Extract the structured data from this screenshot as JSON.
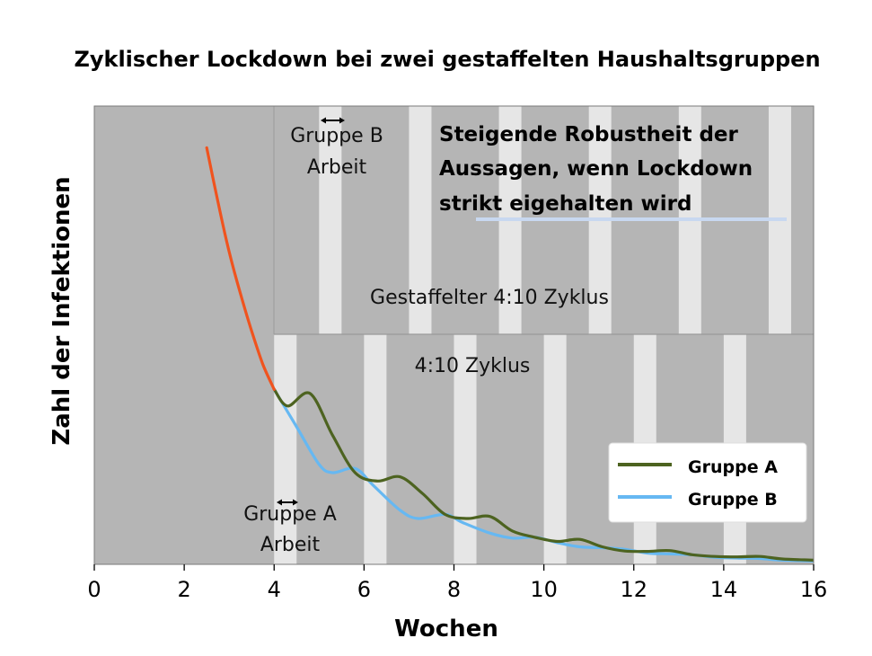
{
  "chart_data": {
    "type": "line",
    "title": "Zyklischer Lockdown bei zwei gestaffelten Haushaltsgruppen",
    "xlabel": "Wochen",
    "ylabel": "Zahl der Infektionen",
    "xlim": [
      0,
      16
    ],
    "xticks": [
      "0",
      "2",
      "4",
      "6",
      "8",
      "10",
      "12",
      "14",
      "16"
    ],
    "grid": false,
    "legend_position": "lower-right",
    "colors": {
      "background": "#b5b5b5",
      "work_band": "#e6e6e6",
      "initial_curve": "#f0531e",
      "gruppe_a": "#4d6320",
      "gruppe_b": "#66b8f2"
    },
    "work_periods_upper": [
      [
        5,
        5.5
      ],
      [
        7,
        7.5
      ],
      [
        9,
        9.5
      ],
      [
        11,
        11.5
      ],
      [
        13,
        13.5
      ],
      [
        15,
        15.5
      ]
    ],
    "work_periods_lower": [
      [
        4,
        4.5
      ],
      [
        6,
        6.5
      ],
      [
        8,
        8.5
      ],
      [
        10,
        10.5
      ],
      [
        12,
        12.5
      ],
      [
        14,
        14.5
      ]
    ],
    "annotations": {
      "upper_cycle": "Gestaffelter 4:10 Zyklus",
      "lower_cycle": "4:10 Zyklus",
      "gruppe_b_line1": "Gruppe B",
      "gruppe_b_line2": "Arbeit",
      "gruppe_a_line1": "Gruppe A",
      "gruppe_a_line2": "Arbeit",
      "note_line1": "Steigende Robustheit der",
      "note_line2": "Aussagen, wenn Lockdown",
      "note_line3": "strikt eigehalten wird"
    },
    "series": [
      {
        "name": "",
        "color_key": "initial_curve",
        "x": [
          2.5,
          2.75,
          3.0,
          3.25,
          3.5,
          3.75,
          4.0
        ],
        "y": [
          100,
          87,
          75,
          65,
          56,
          48,
          42
        ]
      },
      {
        "name": "Gruppe A",
        "color_key": "gruppe_a",
        "x": [
          4.0,
          4.3,
          4.8,
          5.3,
          5.8,
          6.3,
          6.8,
          7.3,
          7.8,
          8.3,
          8.8,
          9.3,
          9.8,
          10.3,
          10.8,
          11.3,
          11.8,
          12.3,
          12.8,
          13.3,
          13.8,
          14.3,
          14.8,
          15.3,
          16.0
        ],
        "y": [
          42,
          38,
          41,
          31,
          22,
          20,
          21,
          17,
          12,
          11,
          11.5,
          8,
          6.5,
          5.5,
          6,
          4.2,
          3.2,
          3.1,
          3.3,
          2.3,
          1.9,
          1.8,
          1.9,
          1.3,
          1.0
        ]
      },
      {
        "name": "Gruppe B",
        "color_key": "gruppe_b",
        "x": [
          4.0,
          4.5,
          5.0,
          5.3,
          5.8,
          6.2,
          6.8,
          7.2,
          7.8,
          8.2,
          8.8,
          9.3,
          9.8,
          10.3,
          10.8,
          11.3,
          11.8,
          12.3,
          12.8,
          13.3,
          13.8,
          14.3,
          14.8,
          15.3,
          16.0
        ],
        "y": [
          42,
          33,
          24,
          22,
          23,
          19,
          13,
          11,
          12,
          10,
          7.5,
          6.3,
          6.5,
          5.2,
          4.2,
          4.0,
          3.6,
          2.7,
          2.5,
          2.3,
          1.7,
          1.5,
          1.4,
          1.0,
          0.8
        ]
      }
    ]
  },
  "legend": [
    {
      "label": "Gruppe A",
      "color_key": "gruppe_a"
    },
    {
      "label": "Gruppe B",
      "color_key": "gruppe_b"
    }
  ]
}
